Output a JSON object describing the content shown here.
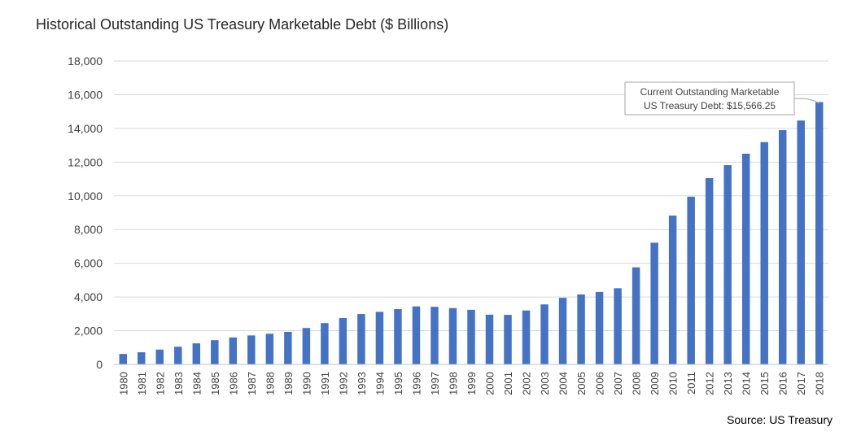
{
  "chart_data": {
    "type": "bar",
    "title": "Historical Outstanding US Treasury Marketable Debt ($ Billions)",
    "source": "Source: US Treasury",
    "categories": [
      "1980",
      "1981",
      "1982",
      "1983",
      "1984",
      "1985",
      "1986",
      "1987",
      "1988",
      "1989",
      "1990",
      "1991",
      "1992",
      "1993",
      "1994",
      "1995",
      "1996",
      "1997",
      "1998",
      "1999",
      "2000",
      "2001",
      "2002",
      "2003",
      "2004",
      "2005",
      "2006",
      "2007",
      "2008",
      "2009",
      "2010",
      "2011",
      "2012",
      "2013",
      "2014",
      "2015",
      "2016",
      "2017",
      "2018"
    ],
    "values": [
      620,
      720,
      880,
      1050,
      1250,
      1440,
      1600,
      1720,
      1820,
      1930,
      2160,
      2450,
      2750,
      2990,
      3120,
      3280,
      3440,
      3420,
      3340,
      3240,
      2950,
      2940,
      3200,
      3560,
      3950,
      4150,
      4300,
      4520,
      5760,
      7220,
      8830,
      9950,
      11050,
      11820,
      12500,
      13190,
      13900,
      14470,
      15566.25
    ],
    "ylim": [
      0,
      18000
    ],
    "yticks": [
      "0",
      "2,000",
      "4,000",
      "6,000",
      "8,000",
      "10,000",
      "12,000",
      "14,000",
      "16,000",
      "18,000"
    ],
    "ytick_values": [
      0,
      2000,
      4000,
      6000,
      8000,
      10000,
      12000,
      14000,
      16000,
      18000
    ],
    "grid": true,
    "bar_color": "#4472C4",
    "annotation": {
      "line1": "Current Outstanding Marketable",
      "line2": "US Treasury Debt: $15,566.25",
      "target_category": "2018"
    }
  }
}
